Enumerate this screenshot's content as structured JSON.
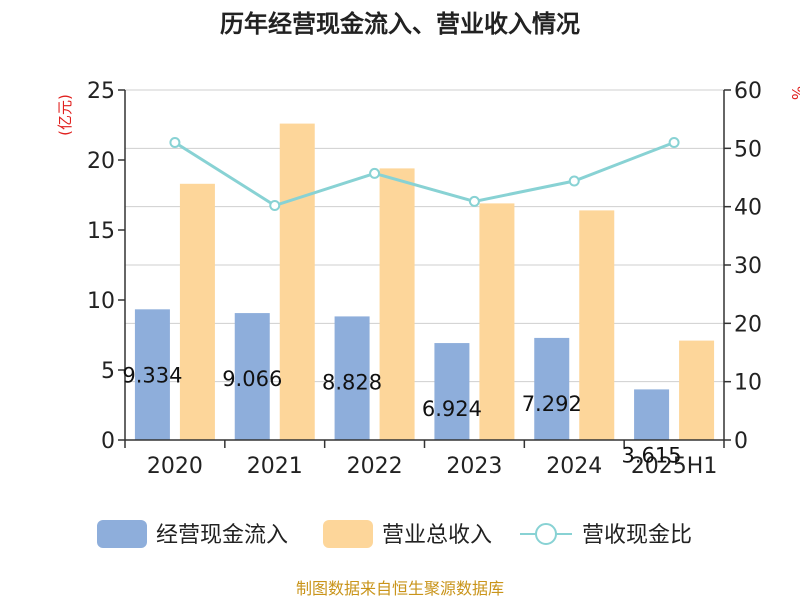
{
  "colors": {
    "cash_inflow": "#8eaedb",
    "revenue": "#fdd69a",
    "ratio_line": "#88d2d4",
    "grid": "#cfcfcf",
    "axis": "#333333",
    "unit_label": "#e0201e",
    "footer": "#c9941a"
  },
  "chart_data": {
    "type": "bar",
    "title": "历年经营现金流入、营业收入情况",
    "categories": [
      "2020",
      "2021",
      "2022",
      "2023",
      "2024",
      "2025H1"
    ],
    "series": [
      {
        "name": "经营现金流入",
        "type": "bar",
        "axis": "left",
        "values": [
          9.334,
          9.066,
          8.828,
          6.924,
          7.292,
          3.615
        ],
        "labels": [
          "9.334",
          "9.066",
          "8.828",
          "6.924",
          "7.292",
          "3.615"
        ]
      },
      {
        "name": "营业总收入",
        "type": "bar",
        "axis": "left",
        "values": [
          18.3,
          22.6,
          19.4,
          16.9,
          16.4,
          7.1
        ]
      },
      {
        "name": "营收现金比",
        "type": "line",
        "axis": "right",
        "values": [
          51.0,
          40.2,
          45.7,
          40.9,
          44.4,
          51.0
        ]
      }
    ],
    "left_axis": {
      "unit": "(亿元)",
      "ylim": [
        0,
        25
      ],
      "ticks": [
        "0",
        "5",
        "10",
        "15",
        "20",
        "25"
      ]
    },
    "right_axis": {
      "unit": "%",
      "ylim": [
        0,
        60
      ],
      "ticks": [
        "0",
        "10",
        "20",
        "30",
        "40",
        "50",
        "60"
      ]
    },
    "grid": true,
    "legend_position": "bottom"
  },
  "footer": {
    "source": "制图数据来自恒生聚源数据库"
  }
}
